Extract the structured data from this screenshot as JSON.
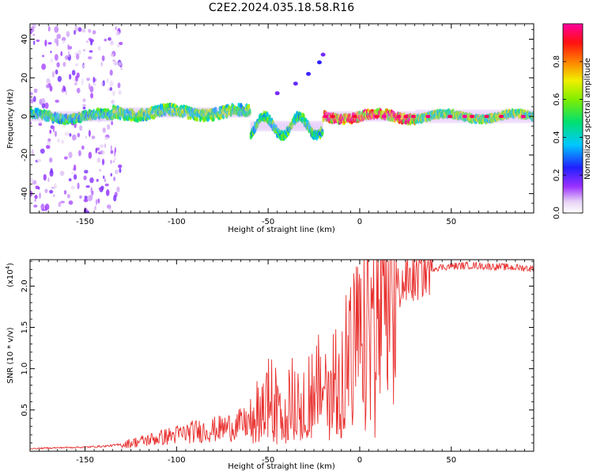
{
  "title": "C2E2.2024.035.18.58.R16",
  "colors": {
    "snr_line": "#e8312f",
    "frame": "#000000"
  },
  "chart_data": [
    {
      "type": "heatmap",
      "xlabel": "Height of straight line (km)",
      "ylabel": "Frequency (Hz)",
      "xlim": [
        -180,
        95
      ],
      "ylim": [
        -50,
        48
      ],
      "xticks": [
        -150,
        -100,
        -50,
        0,
        50
      ],
      "xtick_labels": [
        "-150",
        "-100",
        "-50",
        "0",
        "50"
      ],
      "yticks": [
        -40,
        -20,
        0,
        20,
        40
      ],
      "ytick_labels": [
        "-40",
        "-20",
        "0",
        "20",
        "40"
      ],
      "colorbar": {
        "label": "Normalized spectral amplitude",
        "range": [
          0,
          1
        ],
        "ticks": [
          0.0,
          0.2,
          0.4,
          0.6,
          0.8
        ],
        "tick_labels": [
          "0.0",
          "0.2",
          "0.4",
          "0.6",
          "0.8"
        ],
        "colormap": "rainbow (white-violet-blue-cyan-green-yellow-red-magenta)"
      },
      "description_bands": [
        {
          "x_range": [
            -180,
            -135
          ],
          "freq_center": 0,
          "amplitude": 0.5
        },
        {
          "x_range": [
            -135,
            -60
          ],
          "freq_center": 2,
          "amplitude": 0.55
        },
        {
          "x_range": [
            -60,
            -20
          ],
          "freq_center": -5,
          "amplitude": 0.5
        },
        {
          "x_range": [
            -20,
            30
          ],
          "freq_center": 0,
          "amplitude": 0.9
        },
        {
          "x_range": [
            30,
            95
          ],
          "freq_center": 0,
          "amplitude": 0.6
        }
      ],
      "branch": {
        "x": [
          -45,
          -35,
          -28,
          -22,
          -20
        ],
        "freq": [
          12,
          17,
          22,
          28,
          32
        ]
      }
    },
    {
      "type": "line",
      "xlabel": "Height of straight line (km)",
      "ylabel": "SNR (10 * v/v)",
      "y_multiplier_label": "(x10^4)",
      "xlim": [
        -180,
        95
      ],
      "ylim": [
        0,
        23200
      ],
      "xticks": [
        -150,
        -100,
        -50,
        0,
        50
      ],
      "xtick_labels": [
        "-150",
        "-100",
        "-50",
        "0",
        "50"
      ],
      "yticks": [
        5000,
        10000,
        15000,
        20000
      ],
      "ytick_labels": [
        "0.5",
        "1.0",
        "1.5",
        "2.0"
      ],
      "series": [
        {
          "x": [
            -180,
            -170,
            -160,
            -150,
            -140,
            -130,
            -120,
            -110,
            -100,
            -90,
            -80,
            -70,
            -60,
            -55,
            -50,
            -45,
            -40,
            -35,
            -30,
            -25,
            -20,
            -15,
            -10,
            -5,
            0,
            5,
            10,
            15,
            20,
            25,
            30,
            35,
            40,
            50,
            60,
            70,
            80,
            90,
            95
          ],
          "values": [
            300,
            400,
            450,
            500,
            600,
            800,
            1200,
            1600,
            2000,
            2400,
            2600,
            3000,
            3500,
            5000,
            6500,
            5500,
            6000,
            6500,
            7000,
            7500,
            8000,
            8500,
            10000,
            12000,
            13000,
            15000,
            17000,
            18500,
            19500,
            20500,
            21000,
            21800,
            22200,
            22400,
            22500,
            22400,
            22300,
            22200,
            22100
          ]
        }
      ]
    }
  ]
}
